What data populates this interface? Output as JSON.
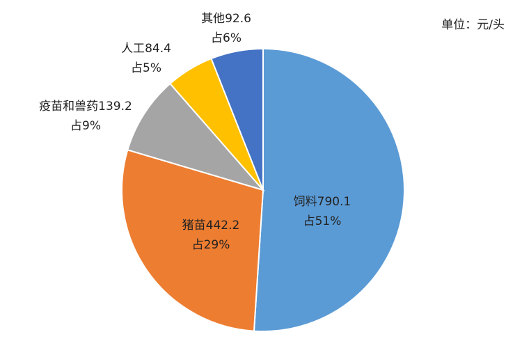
{
  "chart_data": {
    "type": "pie",
    "unit_label": "单位：元/头",
    "categories": [
      "饲料",
      "猪苗",
      "疫苗和兽药",
      "人工",
      "其他"
    ],
    "values": [
      790.1,
      442.2,
      139.2,
      84.4,
      92.6
    ],
    "share_labels": [
      "占51%",
      "占29%",
      "占9%",
      "占5%",
      "占6%"
    ],
    "colors": [
      "#5b9bd5",
      "#ed7d31",
      "#a5a5a5",
      "#ffc000",
      "#4472c4"
    ]
  }
}
